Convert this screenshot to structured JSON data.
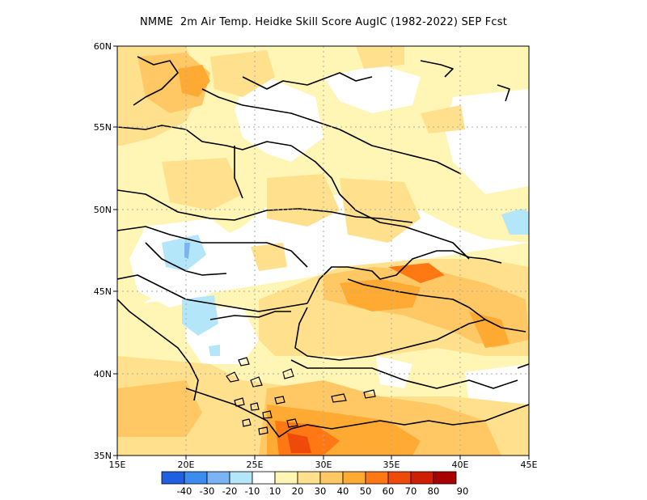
{
  "title": "NMME  2m Air Temp. Heidke Skill Score AugIC (1982-2022) SEP Fcst",
  "map": {
    "lat_labels": [
      "60N",
      "55N",
      "50N",
      "45N",
      "40N",
      "35N"
    ],
    "lon_labels": [
      "15E",
      "20E",
      "25E",
      "30E",
      "35E",
      "40E",
      "45E"
    ],
    "lat_range": [
      35,
      60
    ],
    "lon_range": [
      15,
      45
    ],
    "grid": "dotted"
  },
  "colorbar": {
    "labels": [
      "-40",
      "-30",
      "-20",
      "-10",
      "10",
      "20",
      "30",
      "40",
      "50",
      "60",
      "70",
      "80",
      "90"
    ],
    "colors": [
      "#2060e0",
      "#3c8cf0",
      "#7ab4f5",
      "#b4e6fa",
      "#ffffff",
      "#fff5b4",
      "#ffe08c",
      "#ffc864",
      "#ffaa32",
      "#ff7814",
      "#f04a0a",
      "#d01e00",
      "#a80000"
    ]
  }
}
